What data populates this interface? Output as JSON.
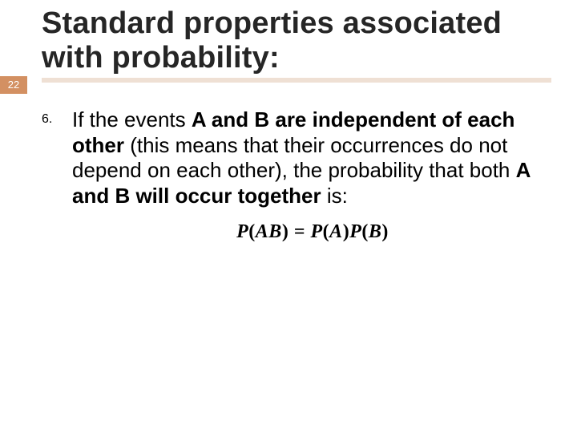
{
  "colors": {
    "pagenum_bg": "#d39062",
    "pagenum_text": "#ffffff",
    "title_text": "#262626",
    "underline": "#efe0d4",
    "body_text": "#000000",
    "formula_text": "#000000"
  },
  "page_number": "22",
  "title": {
    "line1": "Standard properties associated",
    "line2": "with probability:",
    "fontsize_pt": 38
  },
  "list": {
    "marker": "6.",
    "marker_fontsize_pt": 16,
    "text_fontsize_pt": 26,
    "segments": {
      "s1": "If the events ",
      "s2": "A and B are independent of each other",
      "s3": " (this means that their occurrences do not depend on each other), the probability that both ",
      "s4": "A and B will occur together",
      "s5": " is:"
    }
  },
  "formula": {
    "lhs_P": "P",
    "lhs_open": "(",
    "lhs_AB": "AB",
    "lhs_close": ")",
    "eq": "  =  ",
    "r1_P": "P",
    "r1_open": "(",
    "r1_A": "A",
    "r1_close": ")",
    "r2_P": "P",
    "r2_open": "(",
    "r2_B": "B",
    "r2_close": ")",
    "fontsize_pt": 24
  }
}
